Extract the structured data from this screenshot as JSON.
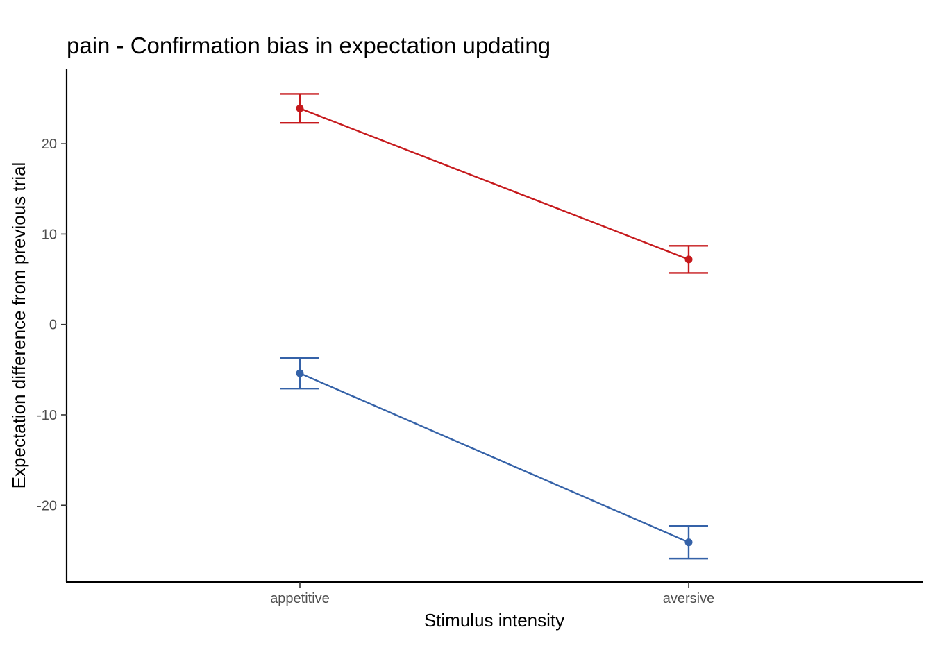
{
  "chart_data": {
    "type": "line",
    "title": "pain  - Confirmation bias in expectation updating",
    "xlabel": "Stimulus intensity",
    "ylabel": "Expectation difference from previous trial",
    "categories": [
      "appetitive",
      "aversive"
    ],
    "yticks": [
      -20,
      -10,
      0,
      10,
      20
    ],
    "ylim": [
      -28.5,
      28.3
    ],
    "grid": false,
    "legend": "none",
    "series": [
      {
        "color": "#c6191c",
        "values": [
          23.9,
          7.2
        ],
        "error_low": [
          22.3,
          5.7
        ],
        "error_high": [
          25.5,
          8.7
        ]
      },
      {
        "color": "#3562a8",
        "values": [
          -5.4,
          -24.1
        ],
        "error_low": [
          -7.1,
          -25.9
        ],
        "error_high": [
          -3.7,
          -22.3
        ]
      }
    ]
  }
}
